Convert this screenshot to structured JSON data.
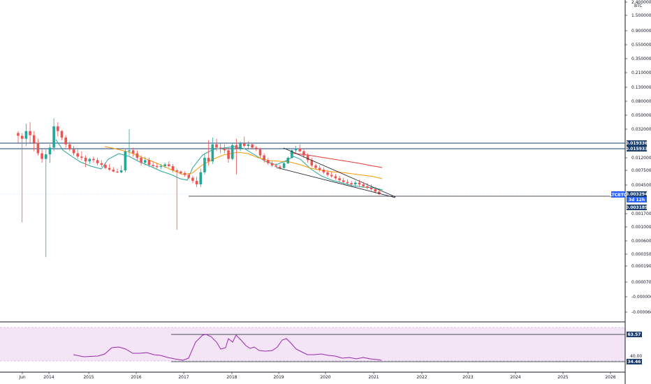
{
  "chart_data": {
    "type": "candlestick",
    "symbol": "LTCBTC",
    "axis_title": "BTC",
    "y_scale": "log",
    "y_ticks": [
      "2.400000",
      "1.500000",
      "0.900000",
      "0.550000",
      "0.350000",
      "0.210000",
      "0.130000",
      "0.080000",
      "0.050000",
      "0.032000",
      "0.012000",
      "0.007500",
      "0.004500",
      "0.001700",
      "0.001000",
      "0.000600",
      "0.000350",
      "0.000190",
      "0.000070",
      "-0.000000",
      "-0.000060"
    ],
    "x_ticks": [
      "Jun",
      "2014",
      "2015",
      "2016",
      "2017",
      "2018",
      "2019",
      "2020",
      "2021",
      "2022",
      "2023",
      "2024",
      "2025",
      "2026"
    ],
    "price_tags": [
      {
        "label": "0.019336",
        "kind": "level"
      },
      {
        "label": "0.015933",
        "kind": "level"
      },
      {
        "label": "LTCBTC",
        "kind": "symbol"
      },
      {
        "label": "0.003294",
        "kind": "last"
      },
      {
        "label": "3d 12h",
        "kind": "countdown"
      },
      {
        "label": "0.003189",
        "kind": "level"
      }
    ],
    "rsi": {
      "ticks": [
        "63.57",
        "40.00",
        "34.46"
      ],
      "upper": "63.57",
      "lower": "34.46"
    },
    "candles": [
      {
        "o": 0.028,
        "h": 0.03,
        "l": 0.02,
        "c": 0.0255
      },
      {
        "o": 0.0255,
        "h": 0.028,
        "l": 0.0012,
        "c": 0.023
      },
      {
        "o": 0.023,
        "h": 0.038,
        "l": 0.018,
        "c": 0.03
      },
      {
        "o": 0.03,
        "h": 0.04,
        "l": 0.02,
        "c": 0.026
      },
      {
        "o": 0.026,
        "h": 0.03,
        "l": 0.015,
        "c": 0.02
      },
      {
        "o": 0.02,
        "h": 0.023,
        "l": 0.013,
        "c": 0.014
      },
      {
        "o": 0.014,
        "h": 0.016,
        "l": 0.01,
        "c": 0.0115
      },
      {
        "o": 0.0115,
        "h": 0.016,
        "l": 0.0003,
        "c": 0.0135
      },
      {
        "o": 0.0135,
        "h": 0.019,
        "l": 0.01,
        "c": 0.017
      },
      {
        "o": 0.017,
        "h": 0.045,
        "l": 0.015,
        "c": 0.035
      },
      {
        "o": 0.035,
        "h": 0.04,
        "l": 0.025,
        "c": 0.03
      },
      {
        "o": 0.03,
        "h": 0.031,
        "l": 0.022,
        "c": 0.024
      },
      {
        "o": 0.024,
        "h": 0.026,
        "l": 0.017,
        "c": 0.019
      },
      {
        "o": 0.019,
        "h": 0.021,
        "l": 0.015,
        "c": 0.016
      },
      {
        "o": 0.016,
        "h": 0.018,
        "l": 0.013,
        "c": 0.014
      },
      {
        "o": 0.014,
        "h": 0.016,
        "l": 0.0115,
        "c": 0.0125
      },
      {
        "o": 0.0125,
        "h": 0.015,
        "l": 0.011,
        "c": 0.012
      },
      {
        "o": 0.012,
        "h": 0.013,
        "l": 0.0085,
        "c": 0.0105
      },
      {
        "o": 0.0105,
        "h": 0.012,
        "l": 0.0095,
        "c": 0.0115
      },
      {
        "o": 0.0115,
        "h": 0.0125,
        "l": 0.01,
        "c": 0.011
      },
      {
        "o": 0.011,
        "h": 0.012,
        "l": 0.009,
        "c": 0.0098
      },
      {
        "o": 0.0098,
        "h": 0.011,
        "l": 0.0085,
        "c": 0.0092
      },
      {
        "o": 0.0092,
        "h": 0.01,
        "l": 0.0078,
        "c": 0.0082
      },
      {
        "o": 0.0082,
        "h": 0.0095,
        "l": 0.0074,
        "c": 0.0077
      },
      {
        "o": 0.0077,
        "h": 0.0085,
        "l": 0.007,
        "c": 0.0072
      },
      {
        "o": 0.0072,
        "h": 0.008,
        "l": 0.0068,
        "c": 0.007
      },
      {
        "o": 0.007,
        "h": 0.009,
        "l": 0.0068,
        "c": 0.0075
      },
      {
        "o": 0.0075,
        "h": 0.016,
        "l": 0.007,
        "c": 0.015
      },
      {
        "o": 0.015,
        "h": 0.032,
        "l": 0.013,
        "c": 0.0155
      },
      {
        "o": 0.0155,
        "h": 0.017,
        "l": 0.0125,
        "c": 0.014
      },
      {
        "o": 0.014,
        "h": 0.0155,
        "l": 0.011,
        "c": 0.012
      },
      {
        "o": 0.012,
        "h": 0.013,
        "l": 0.009,
        "c": 0.01
      },
      {
        "o": 0.01,
        "h": 0.0125,
        "l": 0.009,
        "c": 0.011
      },
      {
        "o": 0.011,
        "h": 0.012,
        "l": 0.0085,
        "c": 0.0092
      },
      {
        "o": 0.0092,
        "h": 0.0105,
        "l": 0.0082,
        "c": 0.0088
      },
      {
        "o": 0.0088,
        "h": 0.0098,
        "l": 0.008,
        "c": 0.0085
      },
      {
        "o": 0.0085,
        "h": 0.0095,
        "l": 0.0078,
        "c": 0.0088
      },
      {
        "o": 0.0088,
        "h": 0.01,
        "l": 0.0082,
        "c": 0.0094
      },
      {
        "o": 0.0094,
        "h": 0.0105,
        "l": 0.0084,
        "c": 0.0088
      },
      {
        "o": 0.0088,
        "h": 0.0095,
        "l": 0.007,
        "c": 0.0075
      },
      {
        "o": 0.0075,
        "h": 0.008,
        "l": 0.0009,
        "c": 0.0072
      },
      {
        "o": 0.0072,
        "h": 0.0075,
        "l": 0.0065,
        "c": 0.0068
      },
      {
        "o": 0.0068,
        "h": 0.0072,
        "l": 0.006,
        "c": 0.0064
      },
      {
        "o": 0.0064,
        "h": 0.0068,
        "l": 0.0055,
        "c": 0.0058
      },
      {
        "o": 0.0058,
        "h": 0.0062,
        "l": 0.0048,
        "c": 0.0052
      },
      {
        "o": 0.0052,
        "h": 0.006,
        "l": 0.0042,
        "c": 0.0046
      },
      {
        "o": 0.0046,
        "h": 0.008,
        "l": 0.0042,
        "c": 0.007
      },
      {
        "o": 0.007,
        "h": 0.014,
        "l": 0.0065,
        "c": 0.012
      },
      {
        "o": 0.012,
        "h": 0.022,
        "l": 0.009,
        "c": 0.0105
      },
      {
        "o": 0.0105,
        "h": 0.024,
        "l": 0.0095,
        "c": 0.019
      },
      {
        "o": 0.019,
        "h": 0.023,
        "l": 0.015,
        "c": 0.017
      },
      {
        "o": 0.017,
        "h": 0.02,
        "l": 0.014,
        "c": 0.0165
      },
      {
        "o": 0.0165,
        "h": 0.019,
        "l": 0.014,
        "c": 0.0155
      },
      {
        "o": 0.0155,
        "h": 0.017,
        "l": 0.01,
        "c": 0.0115
      },
      {
        "o": 0.0115,
        "h": 0.02,
        "l": 0.011,
        "c": 0.0185
      },
      {
        "o": 0.0185,
        "h": 0.023,
        "l": 0.0065,
        "c": 0.0165
      },
      {
        "o": 0.0165,
        "h": 0.021,
        "l": 0.015,
        "c": 0.0195
      },
      {
        "o": 0.0195,
        "h": 0.025,
        "l": 0.017,
        "c": 0.018
      },
      {
        "o": 0.018,
        "h": 0.021,
        "l": 0.016,
        "c": 0.019
      },
      {
        "o": 0.019,
        "h": 0.02,
        "l": 0.016,
        "c": 0.017
      },
      {
        "o": 0.017,
        "h": 0.018,
        "l": 0.015,
        "c": 0.016
      },
      {
        "o": 0.016,
        "h": 0.017,
        "l": 0.012,
        "c": 0.013
      },
      {
        "o": 0.013,
        "h": 0.014,
        "l": 0.01,
        "c": 0.011
      },
      {
        "o": 0.011,
        "h": 0.012,
        "l": 0.0092,
        "c": 0.0098
      },
      {
        "o": 0.0098,
        "h": 0.0105,
        "l": 0.0085,
        "c": 0.009
      },
      {
        "o": 0.009,
        "h": 0.0098,
        "l": 0.0082,
        "c": 0.0086
      },
      {
        "o": 0.0086,
        "h": 0.0092,
        "l": 0.0078,
        "c": 0.0082
      },
      {
        "o": 0.0082,
        "h": 0.0105,
        "l": 0.008,
        "c": 0.0098
      },
      {
        "o": 0.0098,
        "h": 0.0125,
        "l": 0.0095,
        "c": 0.012
      },
      {
        "o": 0.012,
        "h": 0.016,
        "l": 0.0115,
        "c": 0.0155
      },
      {
        "o": 0.0155,
        "h": 0.018,
        "l": 0.014,
        "c": 0.0165
      },
      {
        "o": 0.0165,
        "h": 0.019,
        "l": 0.0145,
        "c": 0.015
      },
      {
        "o": 0.015,
        "h": 0.0165,
        "l": 0.012,
        "c": 0.013
      },
      {
        "o": 0.013,
        "h": 0.014,
        "l": 0.01,
        "c": 0.011
      },
      {
        "o": 0.011,
        "h": 0.012,
        "l": 0.0085,
        "c": 0.009
      },
      {
        "o": 0.009,
        "h": 0.0098,
        "l": 0.0078,
        "c": 0.0082
      },
      {
        "o": 0.0082,
        "h": 0.009,
        "l": 0.0072,
        "c": 0.0077
      },
      {
        "o": 0.0077,
        "h": 0.0084,
        "l": 0.0066,
        "c": 0.007
      },
      {
        "o": 0.007,
        "h": 0.0076,
        "l": 0.006,
        "c": 0.0064
      },
      {
        "o": 0.0064,
        "h": 0.0072,
        "l": 0.0058,
        "c": 0.0061
      },
      {
        "o": 0.0061,
        "h": 0.0066,
        "l": 0.0054,
        "c": 0.0057
      },
      {
        "o": 0.0057,
        "h": 0.0062,
        "l": 0.005,
        "c": 0.0053
      },
      {
        "o": 0.0053,
        "h": 0.0058,
        "l": 0.0047,
        "c": 0.005
      },
      {
        "o": 0.005,
        "h": 0.0055,
        "l": 0.0045,
        "c": 0.0048
      },
      {
        "o": 0.0048,
        "h": 0.0052,
        "l": 0.0043,
        "c": 0.0046
      },
      {
        "o": 0.0046,
        "h": 0.0052,
        "l": 0.0042,
        "c": 0.0049
      },
      {
        "o": 0.0049,
        "h": 0.0054,
        "l": 0.0043,
        "c": 0.0046
      },
      {
        "o": 0.0046,
        "h": 0.005,
        "l": 0.0041,
        "c": 0.0043
      },
      {
        "o": 0.0043,
        "h": 0.0048,
        "l": 0.0039,
        "c": 0.0041
      },
      {
        "o": 0.0041,
        "h": 0.0046,
        "l": 0.0037,
        "c": 0.0039
      },
      {
        "o": 0.0039,
        "h": 0.0042,
        "l": 0.0034,
        "c": 0.0036
      },
      {
        "o": 0.0036,
        "h": 0.0039,
        "l": 0.0032,
        "c": 0.0033
      }
    ],
    "colors": {
      "up": "#26a69a",
      "down": "#ef5350",
      "ema_fast": "#26a69a",
      "ema_mid": "#ff9800",
      "ema_slow": "#e53935",
      "rsi_line": "#9c27b0",
      "rsi_band": "#f3e5f5",
      "level": "#1a3d6d",
      "tag": "#1a3d6d"
    }
  }
}
